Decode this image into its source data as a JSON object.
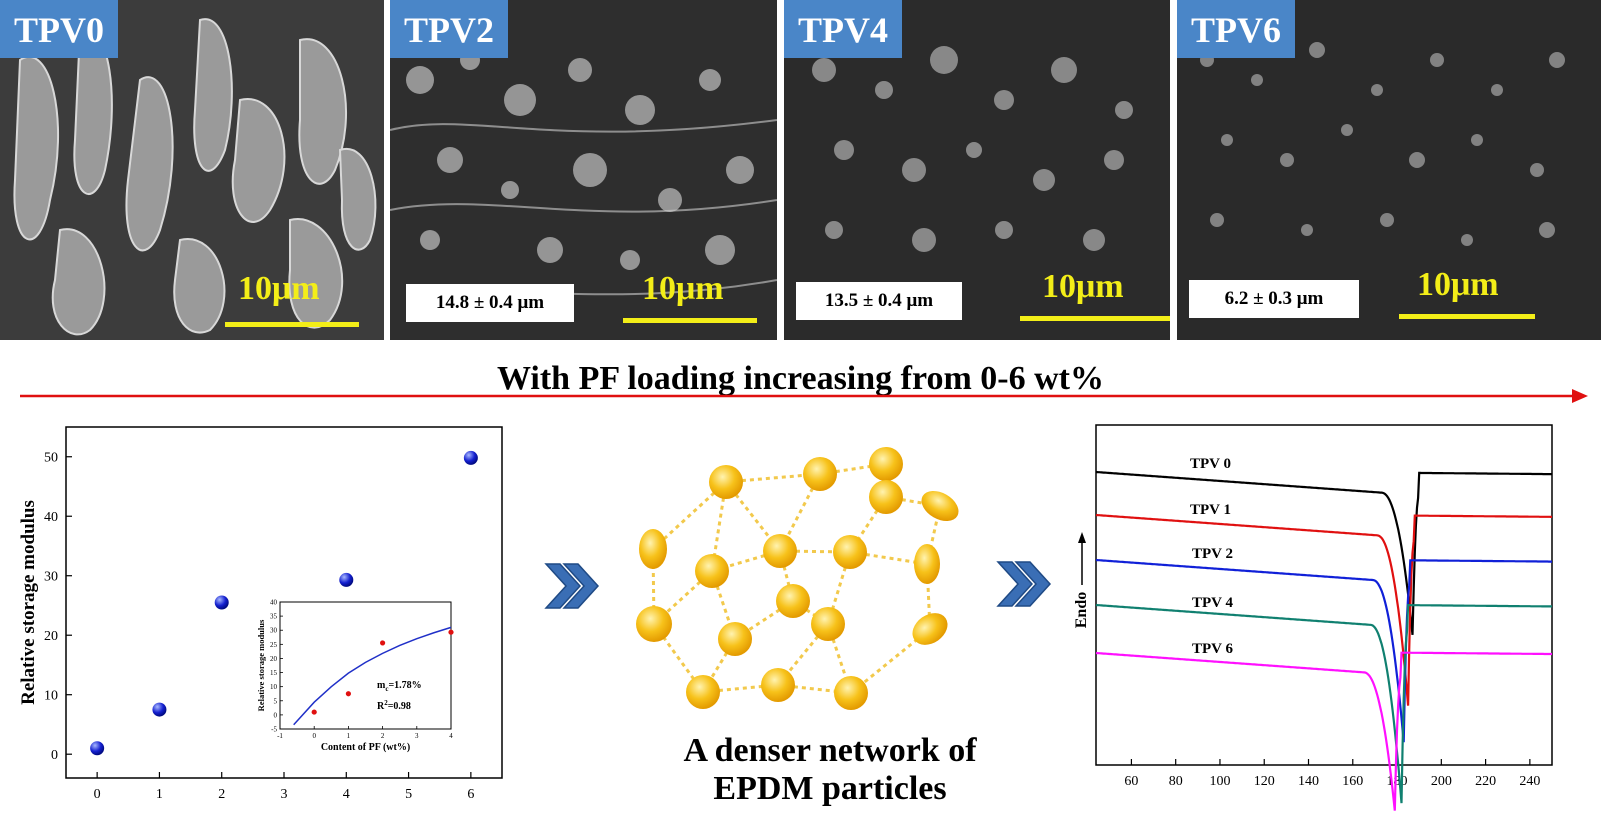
{
  "panels": [
    {
      "label": "TPV0",
      "size": "",
      "scale": "10μm"
    },
    {
      "label": "TPV2",
      "size": "14.8 ± 0.4 μm",
      "scale": "10μm"
    },
    {
      "label": "TPV4",
      "size": "13.5 ± 0.4 μm",
      "scale": "10μm"
    },
    {
      "label": "TPV6",
      "size": "6.2 ± 0.3 μm",
      "scale": "10μm"
    }
  ],
  "banner": "With PF loading increasing from 0-6 wt%",
  "network_caption_line1": "A denser network of",
  "network_caption_line2": "EPDM particles",
  "colors": {
    "label_bg": "#4a86c8",
    "scale_yellow": "#f3ee18",
    "arrow_red": "#e01010",
    "chevron_blue": "#3a6eb5",
    "particle": "#f7b500"
  },
  "chart_data": [
    {
      "type": "scatter",
      "title": "",
      "xlabel": "",
      "ylabel": "Relative storage modulus",
      "xlim": [
        -0.5,
        6.5
      ],
      "ylim": [
        -4,
        55
      ],
      "xticks": [
        "0",
        "1",
        "2",
        "3",
        "4",
        "5",
        "6"
      ],
      "yticks": [
        "0",
        "10",
        "20",
        "30",
        "40",
        "50"
      ],
      "x": [
        0,
        1,
        2,
        4,
        6
      ],
      "y": [
        1,
        7.5,
        25.5,
        29.3,
        49.8
      ],
      "inset": {
        "type": "scatter",
        "xlabel": "Content of PF (wt%)",
        "ylabel": "Relative storage modulus",
        "xlim": [
          -1,
          4
        ],
        "ylim": [
          -5,
          40
        ],
        "xticks": [
          "-1",
          "0",
          "1",
          "2",
          "3",
          "4"
        ],
        "yticks": [
          "-5",
          "0",
          "5",
          "10",
          "15",
          "20",
          "25",
          "30",
          "35",
          "40"
        ],
        "x": [
          0,
          1,
          2,
          4
        ],
        "y": [
          1,
          7.5,
          25.5,
          29.3
        ],
        "fit_x": [
          -0.6,
          0,
          0.5,
          1,
          1.5,
          2,
          2.5,
          3,
          3.5,
          4
        ],
        "fit_y": [
          -3.5,
          4.5,
          10,
          14.8,
          18.6,
          21.8,
          24.6,
          27,
          29.1,
          31
        ],
        "annotation_line1": "m",
        "annotation_sub": "c",
        "annotation_line1_rest": "=1.78%",
        "annotation_line2": "R",
        "annotation_sup": "2",
        "annotation_line2_rest": "=0.98"
      }
    },
    {
      "type": "line",
      "title": "",
      "xlabel": "",
      "ylabel": "Endo",
      "xlim": [
        44,
        250
      ],
      "xticks": [
        "60",
        "80",
        "100",
        "120",
        "140",
        "160",
        "180",
        "200",
        "220",
        "240"
      ],
      "series": [
        {
          "name": "TPV 0",
          "color": "#000000",
          "peak_x": 187,
          "peak_depth": 3.5
        },
        {
          "name": "TPV 1",
          "color": "#e01010",
          "peak_x": 185,
          "peak_depth": 4.2
        },
        {
          "name": "TPV 2",
          "color": "#1020d8",
          "peak_x": 183,
          "peak_depth": 4.0
        },
        {
          "name": "TPV 4",
          "color": "#108070",
          "peak_x": 182,
          "peak_depth": 4.4
        },
        {
          "name": "TPV 6",
          "color": "#ff10ff",
          "peak_x": 179,
          "peak_depth": 3.4
        }
      ]
    }
  ]
}
